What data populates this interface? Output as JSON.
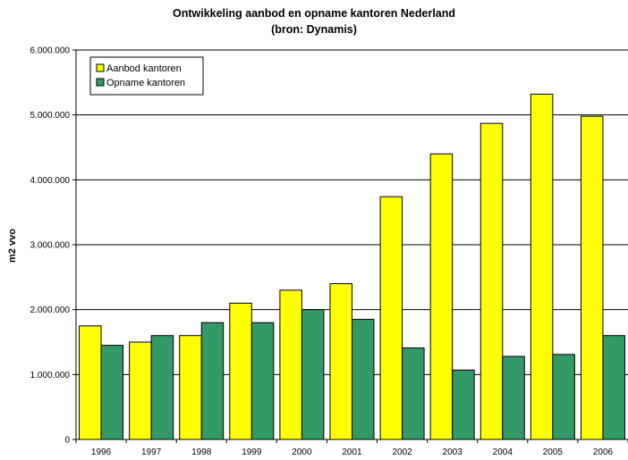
{
  "chart_data": {
    "type": "bar",
    "title": "Ontwikkeling aanbod en opname kantoren Nederland",
    "subtitle": "(bron: Dynamis)",
    "xlabel": "",
    "ylabel": "m2 vvo",
    "categories": [
      "1996",
      "1997",
      "1998",
      "1999",
      "2000",
      "2001",
      "2002",
      "2003",
      "2004",
      "2005",
      "2006"
    ],
    "series": [
      {
        "name": "Aanbod kantoren",
        "color": "#ffff00",
        "values": [
          1750000,
          1500000,
          1600000,
          2100000,
          2300000,
          2400000,
          3740000,
          4400000,
          4870000,
          5320000,
          4980000
        ]
      },
      {
        "name": "Opname kantoren",
        "color": "#339966",
        "values": [
          1450000,
          1600000,
          1800000,
          1800000,
          2000000,
          1850000,
          1410000,
          1070000,
          1280000,
          1310000,
          1600000
        ]
      }
    ],
    "ylim": [
      0,
      6000000
    ],
    "yticks": [
      0,
      1000000,
      2000000,
      3000000,
      4000000,
      5000000,
      6000000
    ],
    "ytick_labels": [
      "0",
      "1.000.000",
      "2.000.000",
      "3.000.000",
      "4.000.000",
      "5.000.000",
      "6.000.000"
    ],
    "grid": true,
    "legend_position": "top-left"
  }
}
